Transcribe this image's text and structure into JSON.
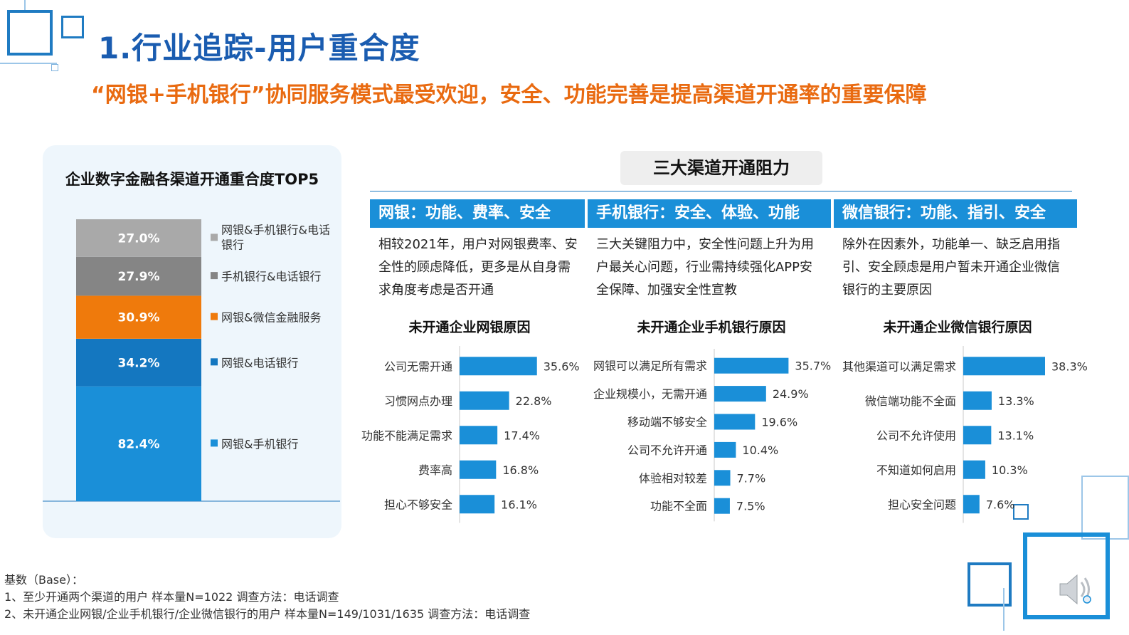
{
  "header": {
    "title": "1.行业追踪-用户重合度",
    "subtitle": "“网银+手机银行”协同服务模式最受欢迎，安全、功能完善是提高渠道开通率的重要保障"
  },
  "left_chart": {
    "title": "企业数字金融各渠道开通重合度TOP5"
  },
  "center": {
    "title": "三大渠道开通阻力",
    "channels": [
      {
        "header": "网银：功能、费率、安全",
        "desc": "相较2021年，用户对网银费率、安全性的顾虑降低，更多是从自身需求角度考虑是否开通",
        "bar_title": "未开通企业网银原因"
      },
      {
        "header": "手机银行：安全、体验、功能",
        "desc": "三大关键阻力中，安全性问题上升为用户最关心问题，行业需持续强化APP安全保障、加强安全性宣教",
        "bar_title": "未开通企业手机银行原因"
      },
      {
        "header": "微信银行：功能、指引、安全",
        "desc": "除外在因素外，功能单一、缺乏启用指引、安全顾虑是用户暂未开通企业微信银行的主要原因",
        "bar_title": "未开通企业微信银行原因"
      }
    ]
  },
  "footer": {
    "notes": [
      "基数（Base）：",
      "1、至少开通两个渠道的用户  样本量N=1022  调查方法：电话调查",
      "2、未开通企业网银/企业手机银行/企业微信银行的用户  样本量N=149/1031/1635  调查方法：电话调查"
    ]
  },
  "icons": {
    "speaker": "speaker-icon"
  },
  "colors": {
    "title_blue": "#1a5cb0",
    "subtitle_orange": "#e96a10",
    "bar_blue": "#1a8fd8",
    "panel_bg": "#eef6fc"
  },
  "chart_data": [
    {
      "type": "bar",
      "stacked": true,
      "title": "企业数字金融各渠道开通重合度TOP5",
      "series": [
        {
          "name": "网银&手机银行",
          "values": [
            82.4
          ],
          "label": "82.4%",
          "color": "#1a8fd8"
        },
        {
          "name": "网银&电话银行",
          "values": [
            34.2
          ],
          "label": "34.2%",
          "color": "#1477c0"
        },
        {
          "name": "网银&微信金融服务",
          "values": [
            30.9
          ],
          "label": "30.9%",
          "color": "#ef7a0c"
        },
        {
          "name": "手机银行&电话银行",
          "values": [
            27.9
          ],
          "label": "27.9%",
          "color": "#858585"
        },
        {
          "name": "网银&手机银行&电话银行",
          "values": [
            27.0
          ],
          "label": "27.0%",
          "color": "#a9a9a9"
        }
      ],
      "legend": "right"
    },
    {
      "type": "bar",
      "orientation": "horizontal",
      "title": "未开通企业网银原因",
      "categories": [
        "公司无需开通",
        "习惯网点办理",
        "功能不能满足需求",
        "费率高",
        "担心不够安全"
      ],
      "values": [
        35.6,
        22.8,
        17.4,
        16.8,
        16.1
      ],
      "labels": [
        "35.6%",
        "22.8%",
        "17.4%",
        "16.8%",
        "16.1%"
      ]
    },
    {
      "type": "bar",
      "orientation": "horizontal",
      "title": "未开通企业手机银行原因",
      "categories": [
        "网银可以满足所有需求",
        "企业规模小，无需开通",
        "移动端不够安全",
        "公司不允许开通",
        "体验相对较差",
        "功能不全面"
      ],
      "values": [
        35.7,
        24.9,
        19.6,
        10.4,
        7.7,
        7.5
      ],
      "labels": [
        "35.7%",
        "24.9%",
        "19.6%",
        "10.4%",
        "7.7%",
        "7.5%"
      ]
    },
    {
      "type": "bar",
      "orientation": "horizontal",
      "title": "未开通企业微信银行原因",
      "categories": [
        "其他渠道可以满足需求",
        "微信端功能不全面",
        "公司不允许使用",
        "不知道如何启用",
        "担心安全问题"
      ],
      "values": [
        38.3,
        13.3,
        13.1,
        10.3,
        7.6
      ],
      "labels": [
        "38.3%",
        "13.3%",
        "13.1%",
        "10.3%",
        "7.6%"
      ]
    }
  ]
}
